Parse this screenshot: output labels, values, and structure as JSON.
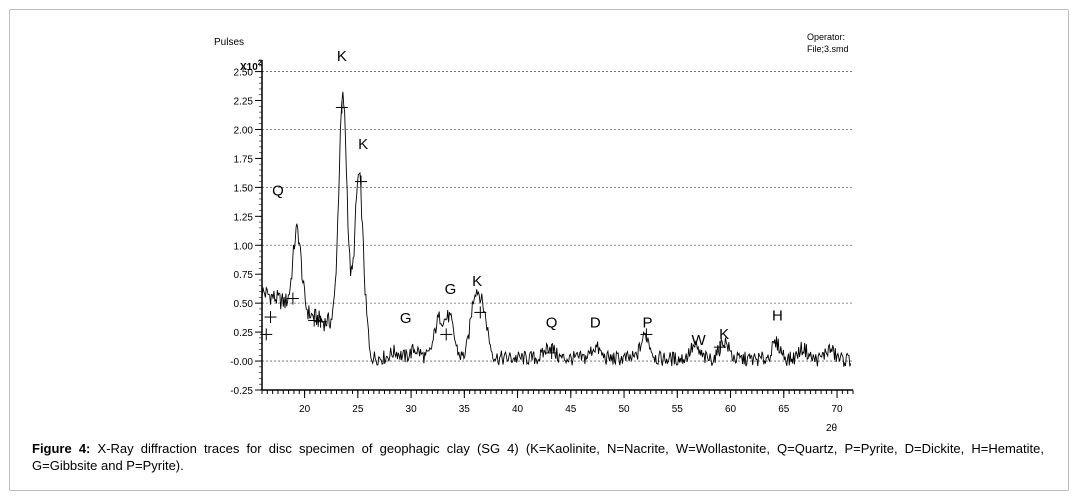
{
  "chart_data": {
    "type": "line",
    "ylabel": "Pulses",
    "y_multiplier": "X10",
    "y_multiplier_exp": "2",
    "xlabel": "2θ",
    "xlim": [
      16,
      71.5
    ],
    "ylim": [
      -0.25,
      2.6
    ],
    "x_ticks": [
      20,
      25,
      30,
      35,
      40,
      45,
      50,
      55,
      60,
      65,
      70
    ],
    "y_ticks": [
      -0.25,
      0.0,
      0.25,
      0.5,
      0.75,
      1.0,
      1.25,
      1.5,
      1.75,
      2.0,
      2.25,
      2.5
    ],
    "y_tick_labels": [
      "-0.25",
      "-0.00",
      "0.25",
      "0.50",
      "0.75",
      "1.00",
      "1.25",
      "1.50",
      "1.75",
      "2.00",
      "2.25",
      "2.50"
    ],
    "dotted_gridlines_y": [
      0.0,
      0.5,
      1.0,
      1.5,
      2.0,
      2.5
    ],
    "header_right": [
      "Operator:",
      "File;3.smd"
    ],
    "peaks": [
      {
        "x": 19.3,
        "y": 1.13
      },
      {
        "x": 23.6,
        "y": 2.27
      },
      {
        "x": 25.1,
        "y": 1.6
      },
      {
        "x": 28.5,
        "y": 0.08
      },
      {
        "x": 30.4,
        "y": 0.1
      },
      {
        "x": 32.6,
        "y": 0.35
      },
      {
        "x": 33.6,
        "y": 0.36
      },
      {
        "x": 36.0,
        "y": 0.54
      },
      {
        "x": 36.8,
        "y": 0.38
      },
      {
        "x": 43.0,
        "y": 0.13
      },
      {
        "x": 47.3,
        "y": 0.12
      },
      {
        "x": 52.0,
        "y": 0.22
      },
      {
        "x": 56.6,
        "y": 0.12
      },
      {
        "x": 59.4,
        "y": 0.17
      },
      {
        "x": 64.3,
        "y": 0.15
      },
      {
        "x": 66.8,
        "y": 0.11
      },
      {
        "x": 69.3,
        "y": 0.1
      }
    ],
    "markers": [
      {
        "x": 16.4,
        "y": 0.23
      },
      {
        "x": 16.8,
        "y": 0.38
      },
      {
        "x": 18.9,
        "y": 0.54
      },
      {
        "x": 20.9,
        "y": 0.35
      },
      {
        "x": 21.5,
        "y": 0.34
      },
      {
        "x": 23.5,
        "y": 2.19
      },
      {
        "x": 25.3,
        "y": 1.55
      },
      {
        "x": 33.3,
        "y": 0.23
      },
      {
        "x": 36.5,
        "y": 0.42
      },
      {
        "x": 43.2,
        "y": 0.07
      },
      {
        "x": 52.1,
        "y": 0.23
      },
      {
        "x": 59.0,
        "y": 0.12
      }
    ],
    "annotations": [
      {
        "text": "K",
        "x": 23.5,
        "y": 2.59
      },
      {
        "text": "K",
        "x": 25.5,
        "y": 1.83
      },
      {
        "text": "Q",
        "x": 17.5,
        "y": 1.43
      },
      {
        "text": "G",
        "x": 29.5,
        "y": 0.33
      },
      {
        "text": "G",
        "x": 33.7,
        "y": 0.58
      },
      {
        "text": "K",
        "x": 36.2,
        "y": 0.65
      },
      {
        "text": "Q",
        "x": 43.2,
        "y": 0.29
      },
      {
        "text": "D",
        "x": 47.3,
        "y": 0.29
      },
      {
        "text": "P",
        "x": 52.2,
        "y": 0.29
      },
      {
        "text": "W",
        "x": 57.0,
        "y": 0.14
      },
      {
        "text": "K",
        "x": 59.4,
        "y": 0.19
      },
      {
        "text": "H",
        "x": 64.4,
        "y": 0.35
      }
    ]
  },
  "caption": {
    "lead": "Figure 4:",
    "text": " X-Ray diffraction traces for disc specimen of geophagic clay (SG 4) (K=Kaolinite, N=Nacrite, W=Wollastonite, Q=Quartz, P=Pyrite, D=Dickite, H=Hematite, G=Gibbsite and P=Pyrite)."
  }
}
